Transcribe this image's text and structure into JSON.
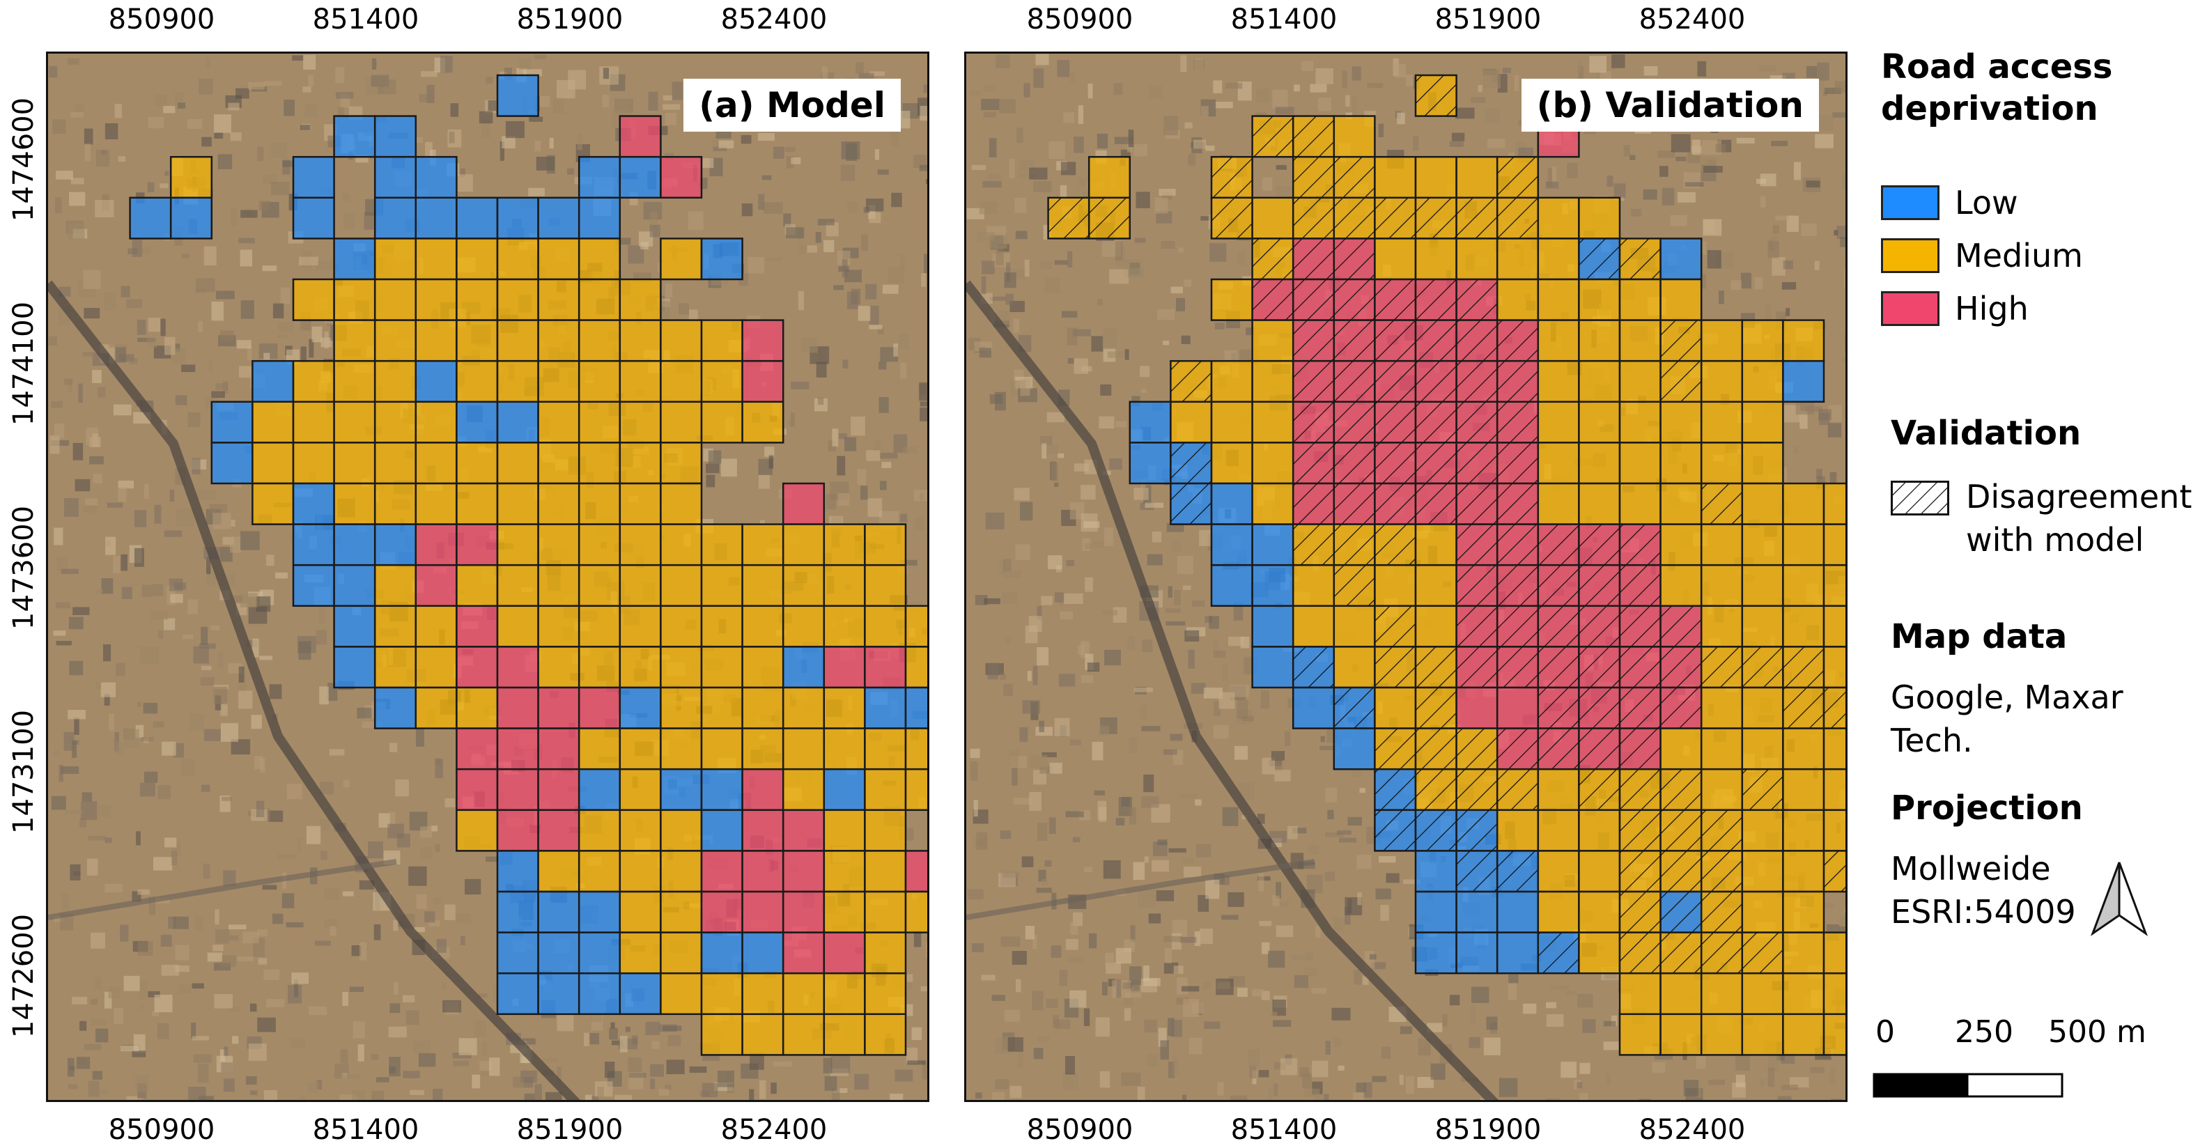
{
  "panels": [
    {
      "label": "(a) Model"
    },
    {
      "label": "(b) Validation"
    }
  ],
  "axes": {
    "x_ticks": [
      "850900",
      "851400",
      "851900",
      "852400"
    ],
    "y_ticks": [
      "1474600",
      "1474100",
      "1473600",
      "1473100",
      "1472600"
    ]
  },
  "legend": {
    "title": "Road access deprivation",
    "title_line1": "Road access",
    "title_line2": "deprivation",
    "classes": [
      {
        "label": "Low",
        "color": "#1e8cff"
      },
      {
        "label": "Medium",
        "color": "#f5b400"
      },
      {
        "label": "High",
        "color": "#f0466e"
      }
    ],
    "validation_heading": "Validation",
    "disagreement_line1": "Disagreement",
    "disagreement_line2": "with model",
    "map_data_heading": "Map data",
    "map_data_text": "Google, Maxar Tech.",
    "projection_heading": "Projection",
    "projection_line1": "Mollweide",
    "projection_line2": "ESRI:54009",
    "north_arrow_icon": "north-arrow-icon",
    "scale_labels": [
      "0",
      "250",
      "500 m"
    ]
  },
  "colors": {
    "low": "#1e8cff",
    "medium": "#f5b400",
    "high": "#f0466e",
    "grid_line": "#1a1a1a",
    "imagery_base": "#a58a68"
  },
  "grid": {
    "model_rows": [
      "..........B.....",
      "......BB.....H....",
      "..M..B.BB...BBH....",
      ".BB..B.BBBBBB.......",
      "......BMMMMMM.MB.....",
      ".....MMMMMMMMM........",
      "......MMMMMMMMMMH......",
      "....BMMMBMMMMMMMH......",
      "...BMMMMMBBMMMMMM......",
      "...BMMMMMMMMMMM........",
      "....MBMMMMMMMMM..H.....",
      ".....BBBHHMMMMMMMMMM...",
      ".....BBMHMMMMMMMMMMM....",
      "......BMMHMMMMMMMMMMMM...",
      "......BMMHHMMMMMMBHHMM...",
      ".......BMMHHHBMMMMMBBMM..",
      ".........HHHMMMMMMMMMM...",
      ".........HHHBMBBHMBMMM...",
      ".........MHHMMMBHHMM.....",
      "..........BMMMMHHHMMH....",
      "..........BBBMMHHHMMM....",
      "..........BBBMMBBHHM.....",
      "..........BBBBMMMMMM.....",
      "...............MMMMM....."
    ],
    "validation_rows": [
      "..........M.....",
      "......MMM....H....",
      "..M..M.MMMMMM......",
      ".MM..MMMMMMMMMM.....",
      "......MHHMMMMMBMB....",
      ".....MHHHHHHMMMMM.....",
      "......MHHHHHHMMMMMMM...",
      "....MMMHHHHHHMMMMMMB...",
      "...BMMMHHHHHHMMMMMM....",
      "...BBMMHHHHHHMMMMMM....",
      "....BBMHHHHHHMMMMMMMM..",
      ".....BBMMMMHHHHHMMMMM..",
      ".....BBMMMMHHHHHMMMMMM.",
      "......BMMMMHHHHHHMMMMMM.",
      "......BBMMMHHHHHHMMMMMM.",
      ".......BBMMHHHHHHMMMMMM.",
      "........BMMMHHHHMMMMMMM.",
      ".........BMMMMMMMMMMMMM.",
      ".........BBBMMMMMMMMMM..",
      "..........BBBMMMMMMMMM..",
      "..........BBBMMMBMMM....",
      "..........BBBBMMMMMMM...",
      "...............MMMMMMM..",
      "...............MMMMMMM.."
    ]
  }
}
